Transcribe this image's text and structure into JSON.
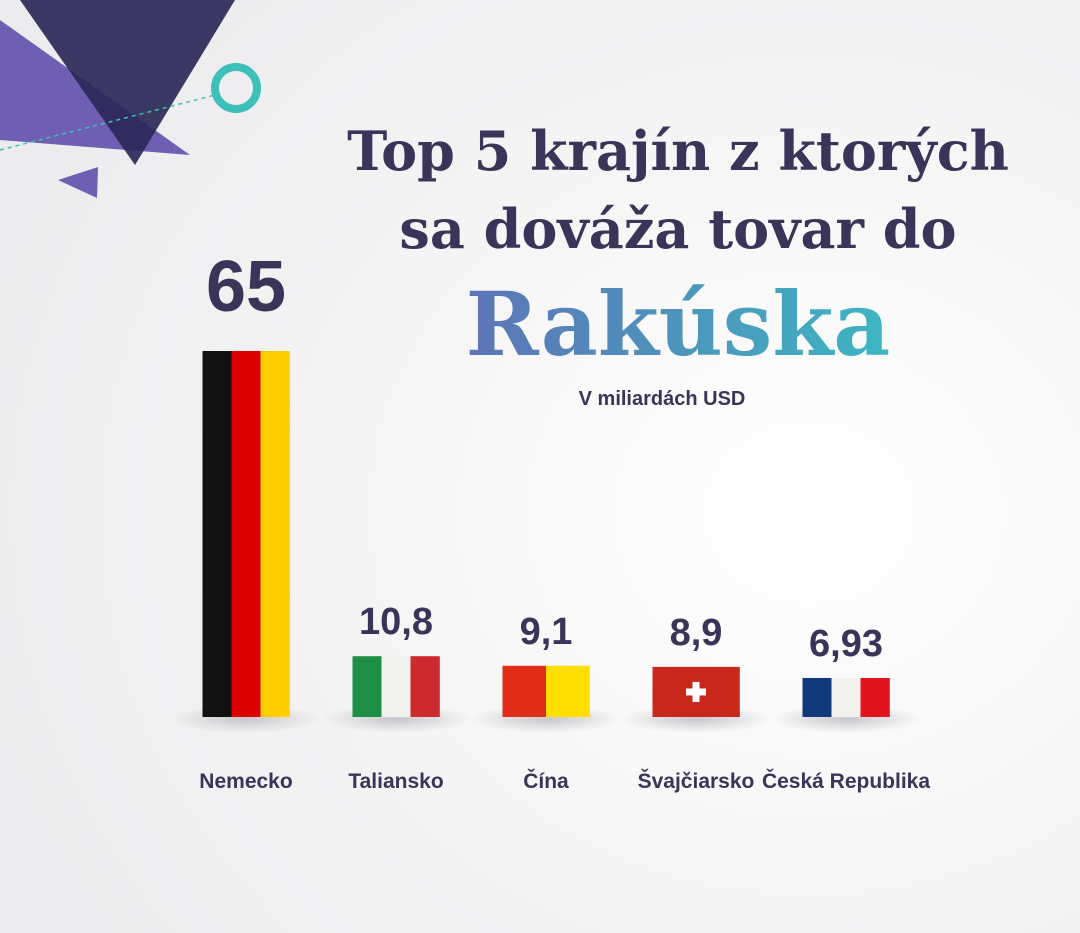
{
  "chart_data": {
    "type": "bar",
    "title_lines": [
      "Top 5 krajín z ktorých",
      "sa dováža tovar do",
      "Rakúska"
    ],
    "subtitle": "V miliardách USD",
    "categories": [
      "Nemecko",
      "Taliansko",
      "Čína",
      "Švajčiarsko",
      "Česká Republika"
    ],
    "values": [
      65,
      10.8,
      9.1,
      8.9,
      6.93
    ],
    "value_labels": [
      "65",
      "10,8",
      "9,1",
      "8,9",
      "6,93"
    ],
    "flags": [
      {
        "stripes": [
          "#111111",
          "#dd0000",
          "#ffce00"
        ]
      },
      {
        "stripes": [
          "#1e9046",
          "#f1f1ee",
          "#cd2a30"
        ]
      },
      {
        "stripes": [
          "#df2d18",
          "#ffde00"
        ]
      },
      {
        "stripes": [
          "#c8281c"
        ],
        "cross": "#ffffff"
      },
      {
        "stripes": [
          "#12397a",
          "#f1f1ee",
          "#e0141e"
        ]
      }
    ]
  }
}
